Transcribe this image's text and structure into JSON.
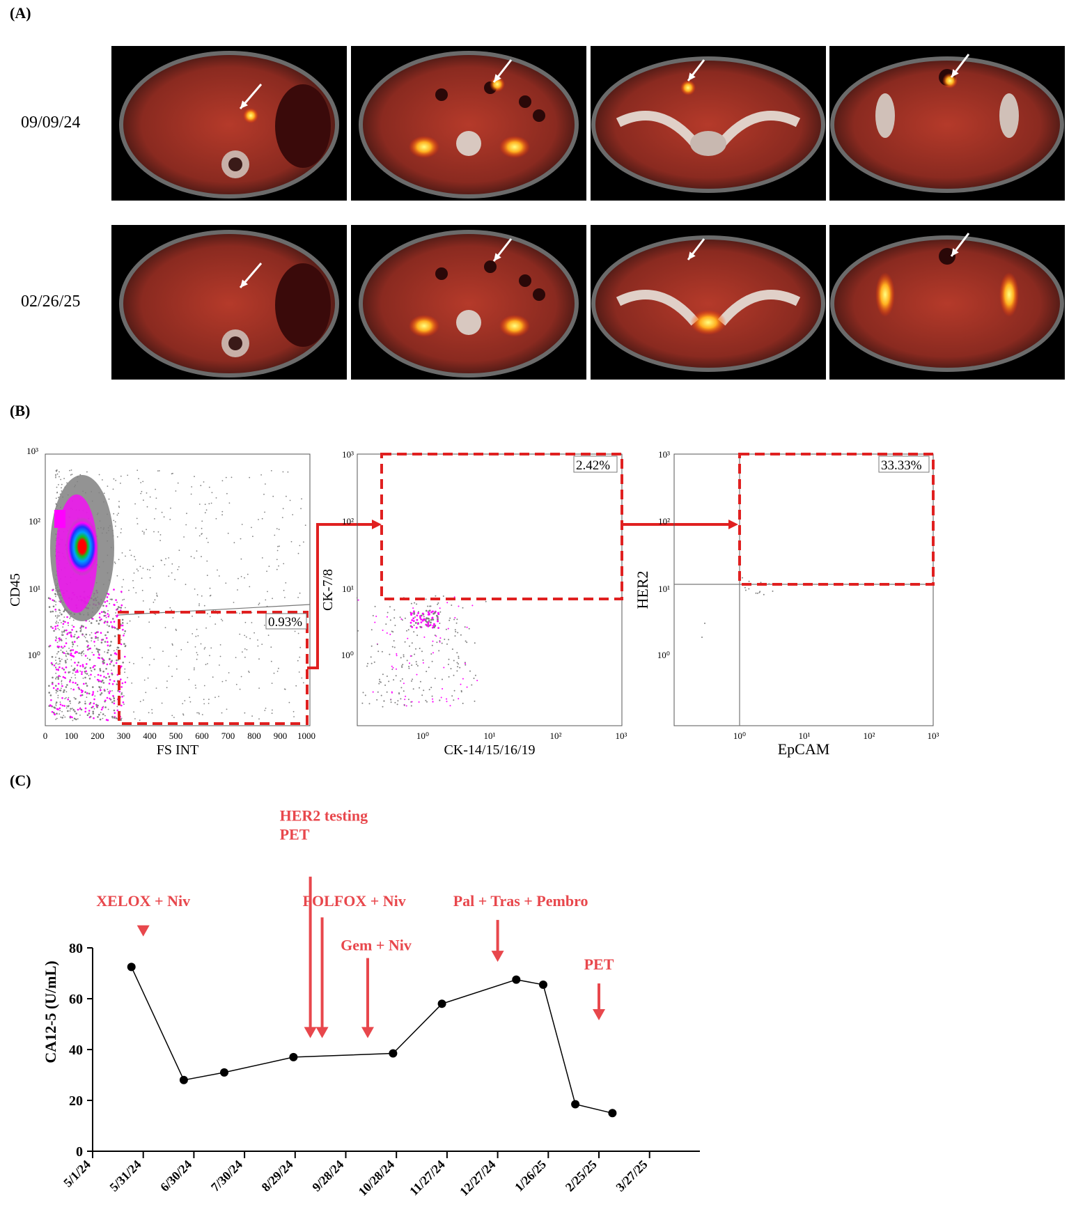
{
  "panel_a": {
    "label": "(A)",
    "rows": [
      {
        "date": "09/09/24"
      },
      {
        "date": "02/26/25"
      }
    ]
  },
  "panel_b": {
    "label": "(B)",
    "plot1": {
      "xlabel": "FS INT",
      "ylabel": "CD45",
      "xticks": [
        "0",
        "100",
        "200",
        "300",
        "400",
        "500",
        "600",
        "700",
        "800",
        "900",
        "1000"
      ],
      "yticks": [
        "10²",
        "10¹",
        "10⁰"
      ],
      "ytop": "10³",
      "gate": "0.93%"
    },
    "plot2": {
      "xlabel": "CK-14/15/16/19",
      "ylabel": "CK-7/8",
      "xticks": [
        "10⁰",
        "10¹",
        "10²",
        "10³"
      ],
      "yticks": [
        "10³",
        "10²",
        "10¹",
        "10⁰"
      ],
      "gate": "2.42%"
    },
    "plot3": {
      "xlabel": "EpCAM",
      "ylabel": "HER2",
      "xticks": [
        "10⁰",
        "10¹",
        "10²",
        "10³"
      ],
      "yticks": [
        "10³",
        "10²",
        "10¹",
        "10⁰"
      ],
      "gate": "33.33%"
    },
    "colors": {
      "gate": "#e02020",
      "dots": "#808080",
      "magenta": "#ff00ff"
    }
  },
  "panel_c": {
    "label": "(C)",
    "chart_data": {
      "type": "line",
      "ylabel": "CA12-5 (U/mL)",
      "xlabel": "",
      "ylim": [
        0,
        80
      ],
      "yticks": [
        0,
        20,
        40,
        60,
        80
      ],
      "xticks": [
        "5/1/24",
        "5/31/24",
        "6/30/24",
        "7/30/24",
        "8/29/24",
        "9/28/24",
        "10/28/24",
        "11/27/24",
        "12/27/24",
        "1/26/25",
        "2/25/25",
        "3/27/25"
      ],
      "x_start": "2024-05-01",
      "series": [
        {
          "points": [
            {
              "x": "2024-05-24",
              "y": 72.5
            },
            {
              "x": "2024-06-24",
              "y": 28
            },
            {
              "x": "2024-07-18",
              "y": 31
            },
            {
              "x": "2024-08-28",
              "y": 37
            },
            {
              "x": "2024-10-26",
              "y": 38.5
            },
            {
              "x": "2024-11-24",
              "y": 58
            },
            {
              "x": "2025-01-07",
              "y": 67.5
            },
            {
              "x": "2025-01-23",
              "y": 65.5
            },
            {
              "x": "2025-02-11",
              "y": 18.5
            },
            {
              "x": "2025-03-05",
              "y": 15
            }
          ]
        }
      ],
      "annotations": [
        {
          "lines": [
            "XELOX + Niv"
          ],
          "x": "2024-05-31",
          "arrow_top": 88,
          "arrow_bottom": 84.5,
          "label_y": 96.5,
          "anchor": "middle"
        },
        {
          "lines": [
            "HER2 testing",
            "PET"
          ],
          "x": "2024-09-07",
          "arrow_top": 108,
          "arrow_bottom": 44.5,
          "label_y": 130,
          "anchor": "start",
          "label_dx": -44
        },
        {
          "lines": [
            "FOLFOX + Niv"
          ],
          "x": "2024-09-14",
          "arrow_top": 92,
          "arrow_bottom": 44.5,
          "label_y": 96.5,
          "anchor": "start",
          "label_dx": -28
        },
        {
          "lines": [
            "Gem + Niv"
          ],
          "x": "2024-10-11",
          "arrow_top": 76,
          "arrow_bottom": 44.5,
          "label_y": 79,
          "anchor": "middle",
          "label_dx": 12
        },
        {
          "lines": [
            "Pal + Tras + Pembro"
          ],
          "x": "2024-12-27",
          "arrow_top": 91,
          "arrow_bottom": 74.5,
          "label_y": 96.5,
          "anchor": "middle",
          "label_dx": 33
        },
        {
          "lines": [
            "PET"
          ],
          "x": "2025-02-25",
          "arrow_top": 66,
          "arrow_bottom": 51.5,
          "label_y": 71.5,
          "anchor": "middle"
        }
      ],
      "annotation_color": "#e8474c"
    }
  }
}
